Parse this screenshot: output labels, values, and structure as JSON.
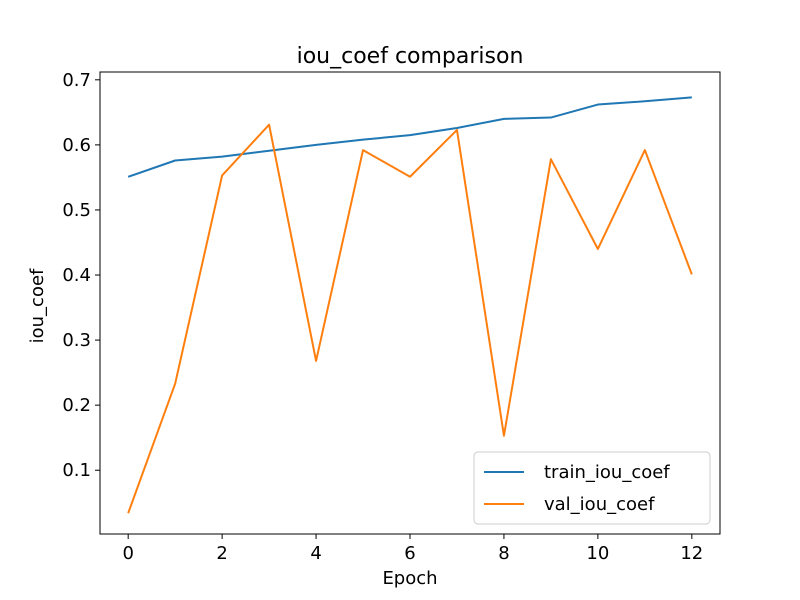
{
  "chart_data": {
    "type": "line",
    "title": "iou_coef comparison",
    "xlabel": "Epoch",
    "ylabel": "iou_coef",
    "x": [
      0,
      1,
      2,
      3,
      4,
      5,
      6,
      7,
      8,
      9,
      10,
      11,
      12
    ],
    "xlim": [
      -0.6,
      12.6
    ],
    "ylim": [
      0.002,
      0.712
    ],
    "xticks": [
      0,
      2,
      4,
      6,
      8,
      10,
      12
    ],
    "yticks": [
      0.1,
      0.2,
      0.3,
      0.4,
      0.5,
      0.6,
      0.7
    ],
    "grid": false,
    "legend_position": "lower-right",
    "series": [
      {
        "name": "train_iou_coef",
        "color": "#1f77b4",
        "values": [
          0.551,
          0.576,
          0.582,
          0.591,
          0.6,
          0.608,
          0.615,
          0.626,
          0.64,
          0.642,
          0.662,
          0.667,
          0.673
        ]
      },
      {
        "name": "val_iou_coef",
        "color": "#ff7f0e",
        "values": [
          0.034,
          0.233,
          0.553,
          0.631,
          0.268,
          0.592,
          0.551,
          0.623,
          0.153,
          0.578,
          0.44,
          0.592,
          0.401
        ]
      }
    ]
  }
}
